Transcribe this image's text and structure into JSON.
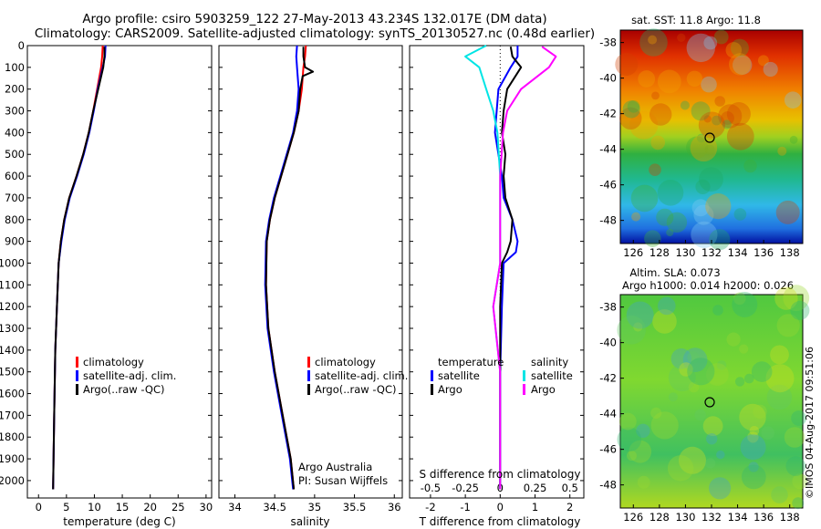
{
  "title": {
    "line1": "Argo profile: csiro 5903259_122 27-May-2013 43.234S 132.017E (DM data)",
    "line2": "Climatology: CARS2009. Satellite-adjusted climatology: synTS_20130527.nc (0.48d earlier)"
  },
  "colors": {
    "climatology": "#ff0000",
    "satellite": "#0000ff",
    "argo": "#000000",
    "sal_satellite": "#00e5e5",
    "sal_argo": "#ff00ff"
  },
  "chart_data": [
    {
      "id": "temperature",
      "type": "line",
      "xlabel": "temperature (deg C)",
      "ylabel": "",
      "xlim": [
        -2,
        31
      ],
      "ylim": [
        2080,
        0
      ],
      "x_ticks": [
        "0",
        "5",
        "10",
        "15",
        "20",
        "25",
        "30"
      ],
      "y_ticks": [
        "0",
        "100",
        "200",
        "300",
        "400",
        "500",
        "600",
        "700",
        "800",
        "900",
        "1000",
        "1100",
        "1200",
        "1300",
        "1400",
        "1500",
        "1600",
        "1700",
        "1800",
        "1900",
        "2000"
      ],
      "legend": [
        "climatology",
        "satellite-adj. clim.",
        "Argo(..raw -QC)"
      ],
      "series": [
        {
          "name": "climatology",
          "x": [
            11.5,
            11.4,
            11.2,
            10.5,
            9.8,
            9.0,
            8.0,
            6.8,
            5.5,
            4.6,
            4.0,
            3.6,
            3.3,
            3.0,
            2.8,
            2.6
          ],
          "y": [
            0,
            50,
            100,
            200,
            300,
            400,
            500,
            600,
            700,
            800,
            900,
            1000,
            1200,
            1400,
            1700,
            2040
          ]
        },
        {
          "name": "satellite-adj. clim.",
          "x": [
            12.0,
            11.9,
            11.5,
            10.6,
            9.9,
            9.1,
            8.1,
            6.9,
            5.6,
            4.7,
            4.1,
            3.6,
            3.3,
            3.0,
            2.8,
            2.6
          ],
          "y": [
            0,
            50,
            100,
            200,
            300,
            400,
            500,
            600,
            700,
            800,
            900,
            1000,
            1200,
            1400,
            1700,
            2040
          ]
        },
        {
          "name": "Argo(..raw -QC)",
          "x": [
            11.8,
            11.8,
            11.6,
            10.7,
            9.8,
            9.0,
            8.0,
            6.8,
            5.5,
            4.6,
            4.0,
            3.6,
            3.3,
            3.0,
            2.8,
            2.6
          ],
          "y": [
            5,
            50,
            100,
            200,
            300,
            400,
            500,
            600,
            700,
            800,
            900,
            1000,
            1200,
            1400,
            1700,
            2040
          ]
        }
      ]
    },
    {
      "id": "salinity",
      "type": "line",
      "xlabel": "salinity",
      "xlim": [
        33.8,
        36.1
      ],
      "ylim": [
        2080,
        0
      ],
      "x_ticks": [
        "34",
        "34.5",
        "35",
        "35.5",
        "36"
      ],
      "legend": [
        "climatology",
        "satellite-adj. clim.",
        "Argo(..raw -QC)"
      ],
      "annotation": [
        "Argo Australia",
        "PI: Susan Wijffels"
      ],
      "series": [
        {
          "name": "climatology",
          "x": [
            34.89,
            34.88,
            34.86,
            34.84,
            34.8,
            34.74,
            34.66,
            34.58,
            34.5,
            34.44,
            34.4,
            34.39,
            34.42,
            34.5,
            34.6,
            34.7,
            34.74
          ],
          "y": [
            0,
            50,
            100,
            200,
            300,
            400,
            500,
            600,
            700,
            800,
            900,
            1100,
            1300,
            1500,
            1700,
            1900,
            2040
          ]
        },
        {
          "name": "satellite-adj. clim.",
          "x": [
            34.78,
            34.77,
            34.78,
            34.8,
            34.78,
            34.73,
            34.65,
            34.57,
            34.49,
            34.43,
            34.39,
            34.38,
            34.41,
            34.49,
            34.59,
            34.69,
            34.73
          ],
          "y": [
            0,
            50,
            100,
            200,
            300,
            400,
            500,
            600,
            700,
            800,
            900,
            1100,
            1300,
            1500,
            1700,
            1900,
            2040
          ]
        },
        {
          "name": "Argo(..raw -QC)",
          "x": [
            34.86,
            34.86,
            34.88,
            34.98,
            34.85,
            34.82,
            34.8,
            34.74,
            34.66,
            34.58,
            34.5,
            34.44,
            34.4,
            34.39,
            34.42,
            34.5,
            34.6,
            34.7,
            34.74
          ],
          "y": [
            5,
            50,
            100,
            120,
            140,
            200,
            300,
            400,
            500,
            600,
            700,
            800,
            900,
            1100,
            1300,
            1500,
            1700,
            1900,
            2040
          ]
        }
      ]
    },
    {
      "id": "differences",
      "type": "line",
      "xlabel": "T difference from climatology",
      "xlabel_top": "S difference from climatology",
      "xlim": [
        -2.6,
        2.4
      ],
      "ylim": [
        2080,
        0
      ],
      "x_ticks_bottom": [
        "-2",
        "-1",
        "0",
        "1",
        "2"
      ],
      "x_ticks_top": [
        "-0.5",
        "-0.25",
        "0",
        "0.25",
        "0.5"
      ],
      "legend_temperature": {
        "title": "temperature",
        "items": [
          "satellite",
          "Argo"
        ]
      },
      "legend_salinity": {
        "title": "salinity",
        "items": [
          "satellite",
          "Argo"
        ]
      },
      "series": [
        {
          "name": "temperature satellite",
          "x": [
            0.5,
            0.5,
            0.3,
            -0.05,
            -0.1,
            -0.15,
            -0.05,
            0.05,
            0.1,
            0.35,
            0.5,
            0.45,
            0.1,
            0.05,
            0.0,
            0.0
          ],
          "y": [
            0,
            50,
            100,
            200,
            300,
            400,
            500,
            600,
            700,
            800,
            900,
            950,
            1000,
            1200,
            1500,
            2040
          ]
        },
        {
          "name": "temperature Argo",
          "x": [
            0.3,
            0.35,
            0.6,
            0.2,
            0.1,
            0.05,
            0.15,
            0.1,
            0.15,
            0.35,
            0.3,
            0.2,
            0.05,
            0.0,
            0.0,
            0.0
          ],
          "y": [
            5,
            50,
            100,
            200,
            300,
            400,
            500,
            600,
            700,
            800,
            900,
            950,
            1000,
            1200,
            1500,
            2040
          ]
        },
        {
          "name": "salinity satellite",
          "x": [
            -0.1,
            -0.25,
            -0.15,
            -0.1,
            -0.05,
            -0.02,
            0.0,
            0.0,
            0.0,
            -0.05,
            0.0,
            0.0
          ],
          "y": [
            0,
            50,
            100,
            200,
            300,
            400,
            600,
            800,
            1000,
            1200,
            1500,
            2040
          ]
        },
        {
          "name": "salinity Argo",
          "x": [
            0.3,
            0.4,
            0.35,
            0.15,
            0.05,
            0.02,
            0.0,
            0.0,
            0.0,
            -0.05,
            0.0,
            0.0
          ],
          "y": [
            5,
            50,
            100,
            200,
            300,
            400,
            600,
            800,
            1000,
            1200,
            1500,
            2040
          ]
        }
      ]
    },
    {
      "id": "sst-map",
      "type": "heatmap",
      "title": "sat. SST: 11.8  Argo: 11.8",
      "x_ticks": [
        "126",
        "128",
        "130",
        "132",
        "134",
        "136",
        "138"
      ],
      "y_ticks": [
        "-38",
        "-40",
        "-42",
        "-44",
        "-46",
        "-48"
      ],
      "xlim": [
        125,
        139
      ],
      "ylim": [
        -49.3,
        -37.3
      ],
      "marker": {
        "lon": 132.017,
        "lat": -43.234
      }
    },
    {
      "id": "sla-map",
      "type": "heatmap",
      "title_line1": "Altim. SLA: 0.073",
      "title_line2": "Argo h1000: 0.014 h2000: 0.026",
      "x_ticks": [
        "126",
        "128",
        "130",
        "132",
        "134",
        "136",
        "138"
      ],
      "y_ticks": [
        "-38",
        "-40",
        "-42",
        "-44",
        "-46",
        "-48"
      ],
      "xlim": [
        125,
        139
      ],
      "ylim": [
        -49.3,
        -37.3
      ],
      "marker": {
        "lon": 132.017,
        "lat": -43.234
      }
    }
  ],
  "credit": "©IMOS 04-Aug-2017 09:51:06"
}
